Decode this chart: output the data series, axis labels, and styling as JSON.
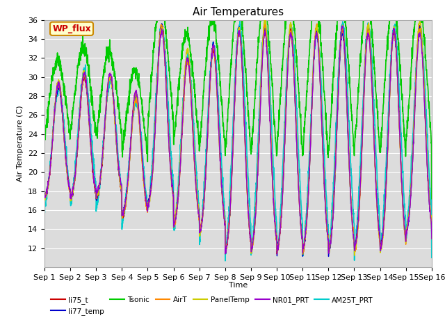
{
  "title": "Air Temperatures",
  "xlabel": "Time",
  "ylabel": "Air Temperature (C)",
  "ylim": [
    10,
    36
  ],
  "yticks": [
    12,
    14,
    16,
    18,
    20,
    22,
    24,
    26,
    28,
    30,
    32,
    34,
    36
  ],
  "bg_color": "#dcdcdc",
  "grid_color": "#ffffff",
  "series": {
    "li75_t": {
      "color": "#cc0000",
      "lw": 1.0,
      "zorder": 3
    },
    "li77_temp": {
      "color": "#0000cc",
      "lw": 1.0,
      "zorder": 3
    },
    "Tsonic": {
      "color": "#00cc00",
      "lw": 1.2,
      "zorder": 2
    },
    "AirT": {
      "color": "#ff8800",
      "lw": 1.0,
      "zorder": 3
    },
    "PanelTemp": {
      "color": "#cccc00",
      "lw": 1.0,
      "zorder": 3
    },
    "NR01_PRT": {
      "color": "#9900cc",
      "lw": 1.0,
      "zorder": 3
    },
    "AM25T_PRT": {
      "color": "#00cccc",
      "lw": 1.2,
      "zorder": 2
    }
  },
  "legend_box": {
    "text": "WP_flux",
    "facecolor": "#ffffcc",
    "edgecolor": "#cc8800",
    "textcolor": "#cc0000"
  },
  "legend_order": [
    "li75_t",
    "li77_temp",
    "Tsonic",
    "AirT",
    "PanelTemp",
    "NR01_PRT",
    "AM25T_PRT"
  ]
}
